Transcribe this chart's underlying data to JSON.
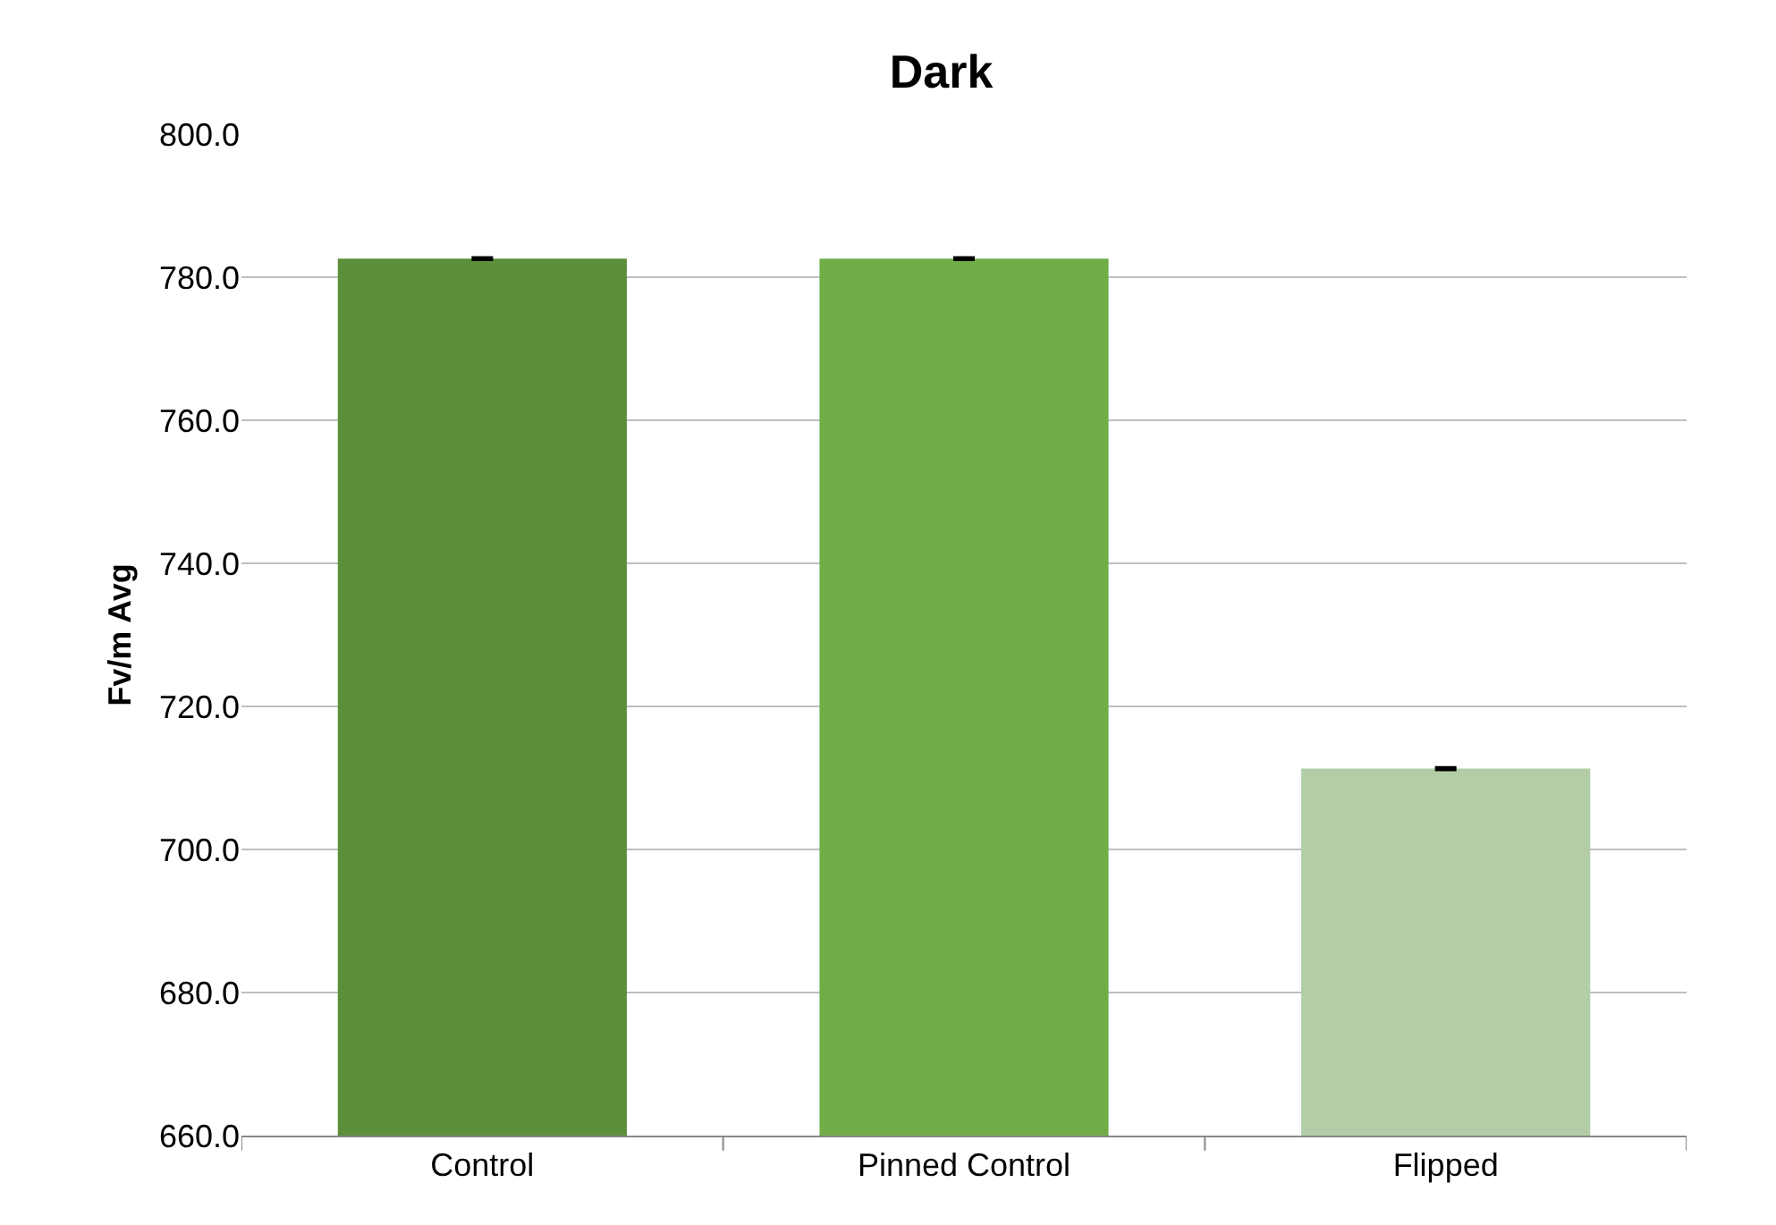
{
  "chart_data": {
    "type": "bar",
    "title": "Dark",
    "ylabel": "Fv/m Avg",
    "categories": [
      "Control",
      "Pinned Control",
      "Flipped"
    ],
    "values": [
      782.6,
      782.6,
      711.3
    ],
    "colors": [
      "#5b8f3a",
      "#70ad47",
      "#b3cea6"
    ],
    "errors": [
      0.1,
      0.1,
      0.1
    ],
    "ylim": [
      660,
      800
    ],
    "yticks": [
      {
        "value": 660,
        "label": "660.0"
      },
      {
        "value": 680,
        "label": "680.0"
      },
      {
        "value": 700,
        "label": "700.0"
      },
      {
        "value": 720,
        "label": "720.0"
      },
      {
        "value": 740,
        "label": "740.0"
      },
      {
        "value": 760,
        "label": "760.0"
      },
      {
        "value": 780,
        "label": "780.0"
      },
      {
        "value": 800,
        "label": "800.0"
      }
    ],
    "grid": "y"
  }
}
